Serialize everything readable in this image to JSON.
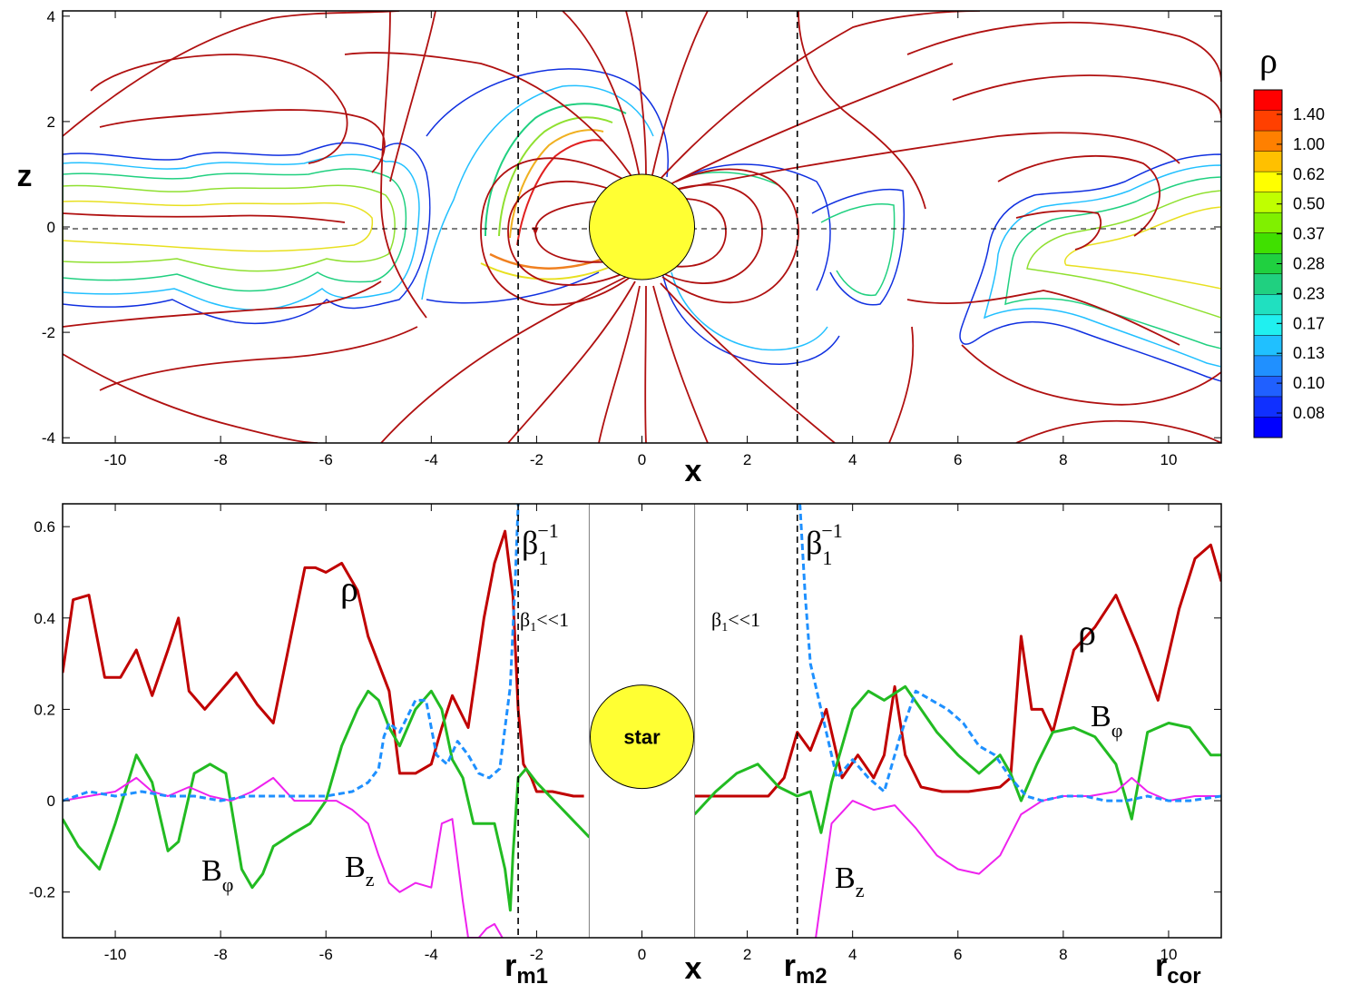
{
  "colors": {
    "rho": "#c00000",
    "bphi": "#22bb22",
    "bz": "#ee22ee",
    "beta": "#1e90ff",
    "star": "#ffff33",
    "fieldline": "#b01010"
  },
  "chart_data": [
    {
      "type": "contour",
      "xlabel": "x",
      "ylabel": "z",
      "xlim": [
        -11,
        11
      ],
      "ylim": [
        -4.1,
        4.1
      ],
      "xticks": [
        -10,
        -8,
        -6,
        -4,
        -2,
        0,
        2,
        4,
        6,
        8,
        10
      ],
      "yticks": [
        -4,
        -2,
        0,
        2,
        4
      ],
      "star": {
        "x": 0,
        "z": 0,
        "radius": 1
      },
      "dashed_vertical_lines": [
        -2.35,
        2.95
      ],
      "dashed_horizontal_line": 0,
      "colorbar": {
        "title": "ρ",
        "levels": [
          "1.40",
          "1.00",
          "0.62",
          "0.50",
          "0.37",
          "0.28",
          "0.23",
          "0.17",
          "0.13",
          "0.10",
          "0.08"
        ]
      }
    },
    {
      "type": "line",
      "xlabel": "x",
      "xlim": [
        -11,
        11
      ],
      "ylim": [
        -0.3,
        0.65
      ],
      "xticks": [
        -10,
        -8,
        -6,
        -4,
        -2,
        0,
        2,
        4,
        6,
        8,
        10
      ],
      "yticks": [
        -0.2,
        0,
        0.2,
        0.4,
        0.6
      ],
      "star_box": {
        "x0": -1,
        "x1": 1,
        "label": "star"
      },
      "markers": [
        {
          "name": "r",
          "sub": "m1",
          "x": -2.35
        },
        {
          "name": "r",
          "sub": "m2",
          "x": 2.95
        },
        {
          "name": "r",
          "sub": "cor",
          "x": 10
        }
      ],
      "annotations": {
        "rho": "ρ",
        "bphi": "B",
        "bphi_sub": "φ",
        "bz": "B",
        "bz_sub": "z",
        "beta_inv": "β",
        "beta_sub": "1",
        "beta_sup": "−1",
        "beta_small": "β",
        "beta_small_sub": "1",
        "beta_small_rest": "<<1"
      },
      "series": [
        {
          "name": "rho",
          "left": {
            "x": [
              -11,
              -10.8,
              -10.5,
              -10.2,
              -9.9,
              -9.6,
              -9.3,
              -9.0,
              -8.8,
              -8.6,
              -8.3,
              -8.0,
              -7.7,
              -7.3,
              -7.0,
              -6.7,
              -6.4,
              -6.2,
              -6.0,
              -5.7,
              -5.4,
              -5.2,
              -5.0,
              -4.8,
              -4.6,
              -4.3,
              -4.0,
              -3.8,
              -3.6,
              -3.3,
              -3.0,
              -2.8,
              -2.6,
              -2.45,
              -2.35,
              -2.25,
              -2.1,
              -2.0,
              -1.7,
              -1.3,
              -1.1
            ],
            "y": [
              0.28,
              0.44,
              0.45,
              0.27,
              0.27,
              0.33,
              0.23,
              0.33,
              0.4,
              0.24,
              0.2,
              0.24,
              0.28,
              0.21,
              0.17,
              0.34,
              0.51,
              0.51,
              0.5,
              0.52,
              0.46,
              0.36,
              0.3,
              0.24,
              0.06,
              0.06,
              0.08,
              0.16,
              0.23,
              0.16,
              0.4,
              0.52,
              0.59,
              0.45,
              0.2,
              0.08,
              0.05,
              0.02,
              0.02,
              0.01,
              0.01
            ]
          },
          "right": {
            "x": [
              1.0,
              1.5,
              2.0,
              2.4,
              2.7,
              2.95,
              3.2,
              3.5,
              3.8,
              4.1,
              4.4,
              4.6,
              4.8,
              5.0,
              5.3,
              5.7,
              6.2,
              6.8,
              7.0,
              7.2,
              7.4,
              7.6,
              7.8,
              8.2,
              8.6,
              9.0,
              9.4,
              9.8,
              10.2,
              10.5,
              10.8,
              11.0
            ],
            "y": [
              0.01,
              0.01,
              0.01,
              0.01,
              0.05,
              0.15,
              0.11,
              0.2,
              0.05,
              0.1,
              0.05,
              0.1,
              0.25,
              0.1,
              0.03,
              0.02,
              0.02,
              0.03,
              0.05,
              0.36,
              0.2,
              0.2,
              0.15,
              0.33,
              0.38,
              0.45,
              0.34,
              0.22,
              0.42,
              0.53,
              0.56,
              0.48
            ]
          }
        },
        {
          "name": "bphi",
          "left": {
            "x": [
              -11,
              -10.7,
              -10.3,
              -10.0,
              -9.6,
              -9.3,
              -9.0,
              -8.8,
              -8.5,
              -8.2,
              -7.9,
              -7.6,
              -7.4,
              -7.2,
              -7.0,
              -6.6,
              -6.3,
              -6.0,
              -5.7,
              -5.4,
              -5.2,
              -5.0,
              -4.8,
              -4.6,
              -4.3,
              -4.0,
              -3.8,
              -3.6,
              -3.4,
              -3.2,
              -3.0,
              -2.8,
              -2.6,
              -2.5,
              -2.45,
              -2.35,
              -2.2,
              -2.0,
              -1.5,
              -1.0
            ],
            "y": [
              -0.04,
              -0.1,
              -0.15,
              -0.05,
              0.1,
              0.04,
              -0.11,
              -0.09,
              0.06,
              0.08,
              0.06,
              -0.15,
              -0.19,
              -0.16,
              -0.1,
              -0.07,
              -0.05,
              0.0,
              0.12,
              0.2,
              0.24,
              0.22,
              0.16,
              0.12,
              0.2,
              0.24,
              0.2,
              0.09,
              0.05,
              -0.05,
              -0.05,
              -0.05,
              -0.15,
              -0.24,
              -0.12,
              0.05,
              0.07,
              0.04,
              -0.02,
              -0.08
            ]
          },
          "right": {
            "x": [
              1.0,
              1.4,
              1.8,
              2.2,
              2.6,
              2.95,
              3.2,
              3.4,
              3.6,
              4.0,
              4.3,
              4.6,
              5.0,
              5.3,
              5.6,
              6.0,
              6.4,
              6.8,
              7.0,
              7.2,
              7.5,
              7.8,
              8.2,
              8.6,
              9.0,
              9.3,
              9.6,
              10.0,
              10.4,
              10.8,
              11.0
            ],
            "y": [
              -0.03,
              0.02,
              0.06,
              0.08,
              0.03,
              0.01,
              0.02,
              -0.07,
              0.04,
              0.2,
              0.24,
              0.22,
              0.25,
              0.2,
              0.15,
              0.1,
              0.06,
              0.1,
              0.06,
              0.0,
              0.08,
              0.15,
              0.16,
              0.14,
              0.08,
              -0.04,
              0.15,
              0.17,
              0.16,
              0.1,
              0.1
            ]
          }
        },
        {
          "name": "bz",
          "left": {
            "x": [
              -11,
              -10.5,
              -10.0,
              -9.6,
              -9.3,
              -9.0,
              -8.6,
              -8.2,
              -7.8,
              -7.4,
              -7.0,
              -6.6,
              -6.2,
              -5.8,
              -5.5,
              -5.2,
              -5.0,
              -4.8,
              -4.6,
              -4.3,
              -4.0,
              -3.8,
              -3.6,
              -3.4,
              -3.3,
              -3.1,
              -2.95,
              -2.8,
              -2.65
            ],
            "y": [
              0.0,
              0.01,
              0.02,
              0.05,
              0.02,
              0.01,
              0.03,
              0.01,
              0.0,
              0.02,
              0.05,
              0.0,
              0.0,
              0.0,
              -0.02,
              -0.05,
              -0.12,
              -0.18,
              -0.2,
              -0.18,
              -0.19,
              -0.05,
              -0.04,
              -0.22,
              -0.3,
              -0.3,
              -0.28,
              -0.27,
              -0.3
            ]
          },
          "right": {
            "x": [
              3.3,
              3.6,
              4.0,
              4.4,
              4.8,
              5.2,
              5.6,
              6.0,
              6.4,
              6.8,
              7.2,
              7.6,
              8.0,
              8.5,
              9.0,
              9.3,
              9.6,
              10.0,
              10.5,
              11.0
            ],
            "y": [
              -0.3,
              -0.05,
              0.0,
              -0.02,
              -0.01,
              -0.06,
              -0.12,
              -0.15,
              -0.16,
              -0.12,
              -0.03,
              0.0,
              0.01,
              0.01,
              0.02,
              0.05,
              0.02,
              0.0,
              0.01,
              0.01
            ]
          }
        },
        {
          "name": "beta_inv",
          "left": {
            "x": [
              -11,
              -10.5,
              -10.0,
              -9.5,
              -9.0,
              -8.5,
              -8.0,
              -7.5,
              -7.0,
              -6.5,
              -6.0,
              -5.5,
              -5.2,
              -5.0,
              -4.9,
              -4.8,
              -4.6,
              -4.3,
              -4.1,
              -3.9,
              -3.7,
              -3.5,
              -3.3,
              -3.1,
              -2.9,
              -2.7,
              -2.5,
              -2.4,
              -2.35
            ],
            "y": [
              0.0,
              0.02,
              0.01,
              0.02,
              0.01,
              0.01,
              0.0,
              0.01,
              0.01,
              0.01,
              0.01,
              0.02,
              0.04,
              0.07,
              0.14,
              0.17,
              0.15,
              0.22,
              0.22,
              0.1,
              0.08,
              0.13,
              0.1,
              0.06,
              0.05,
              0.07,
              0.25,
              0.5,
              0.65
            ]
          },
          "right": {
            "x": [
              3.0,
              3.1,
              3.2,
              3.3,
              3.5,
              3.7,
              4.0,
              4.3,
              4.6,
              4.9,
              5.2,
              5.5,
              5.8,
              6.1,
              6.4,
              6.7,
              7.0,
              7.3,
              7.6,
              8.0,
              8.4,
              8.8,
              9.2,
              9.6,
              10.0,
              10.4,
              11.0
            ],
            "y": [
              0.65,
              0.45,
              0.3,
              0.25,
              0.15,
              0.05,
              0.09,
              0.05,
              0.02,
              0.14,
              0.24,
              0.22,
              0.2,
              0.17,
              0.12,
              0.1,
              0.05,
              0.01,
              0.0,
              0.01,
              0.01,
              0.0,
              0.0,
              0.01,
              0.0,
              0.0,
              0.01
            ]
          }
        }
      ]
    }
  ]
}
